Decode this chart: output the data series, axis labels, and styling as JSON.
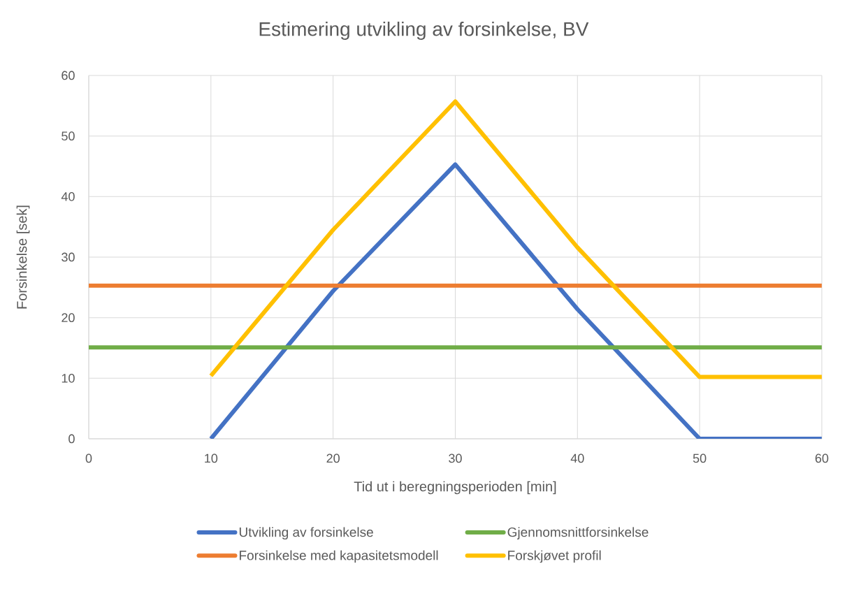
{
  "chart_data": {
    "type": "line",
    "title": "Estimering utvikling av forsinkelse, BV",
    "xlabel": "Tid ut i beregningsperioden [min]",
    "ylabel": "Forsinkelse [sek]",
    "x": [
      0,
      10,
      20,
      30,
      40,
      50,
      60
    ],
    "xlim": [
      0,
      60
    ],
    "ylim": [
      0,
      60
    ],
    "xticks": [
      0,
      10,
      20,
      30,
      40,
      50,
      60
    ],
    "yticks": [
      0,
      10,
      20,
      30,
      40,
      50,
      60
    ],
    "grid": true,
    "legend": "bottom",
    "series": [
      {
        "name": "Utvikling av forsinkelse",
        "color": "#4472c4",
        "values": [
          null,
          0,
          24.4,
          45.3,
          21.4,
          0,
          0
        ]
      },
      {
        "name": "Gjennomsnittforsinkelse",
        "color": "#70ad47",
        "values": [
          15.1,
          15.1,
          15.1,
          15.1,
          15.1,
          15.1,
          15.1
        ]
      },
      {
        "name": "Forsinkelse med kapasitetsmodell",
        "color": "#ed7d31",
        "values": [
          25.3,
          25.3,
          25.3,
          25.3,
          25.3,
          25.3,
          25.3
        ]
      },
      {
        "name": "Forskjøvet profil",
        "color": "#ffc000",
        "values": [
          null,
          10.4,
          34.5,
          55.7,
          31.6,
          10.2,
          10.2
        ]
      }
    ]
  }
}
